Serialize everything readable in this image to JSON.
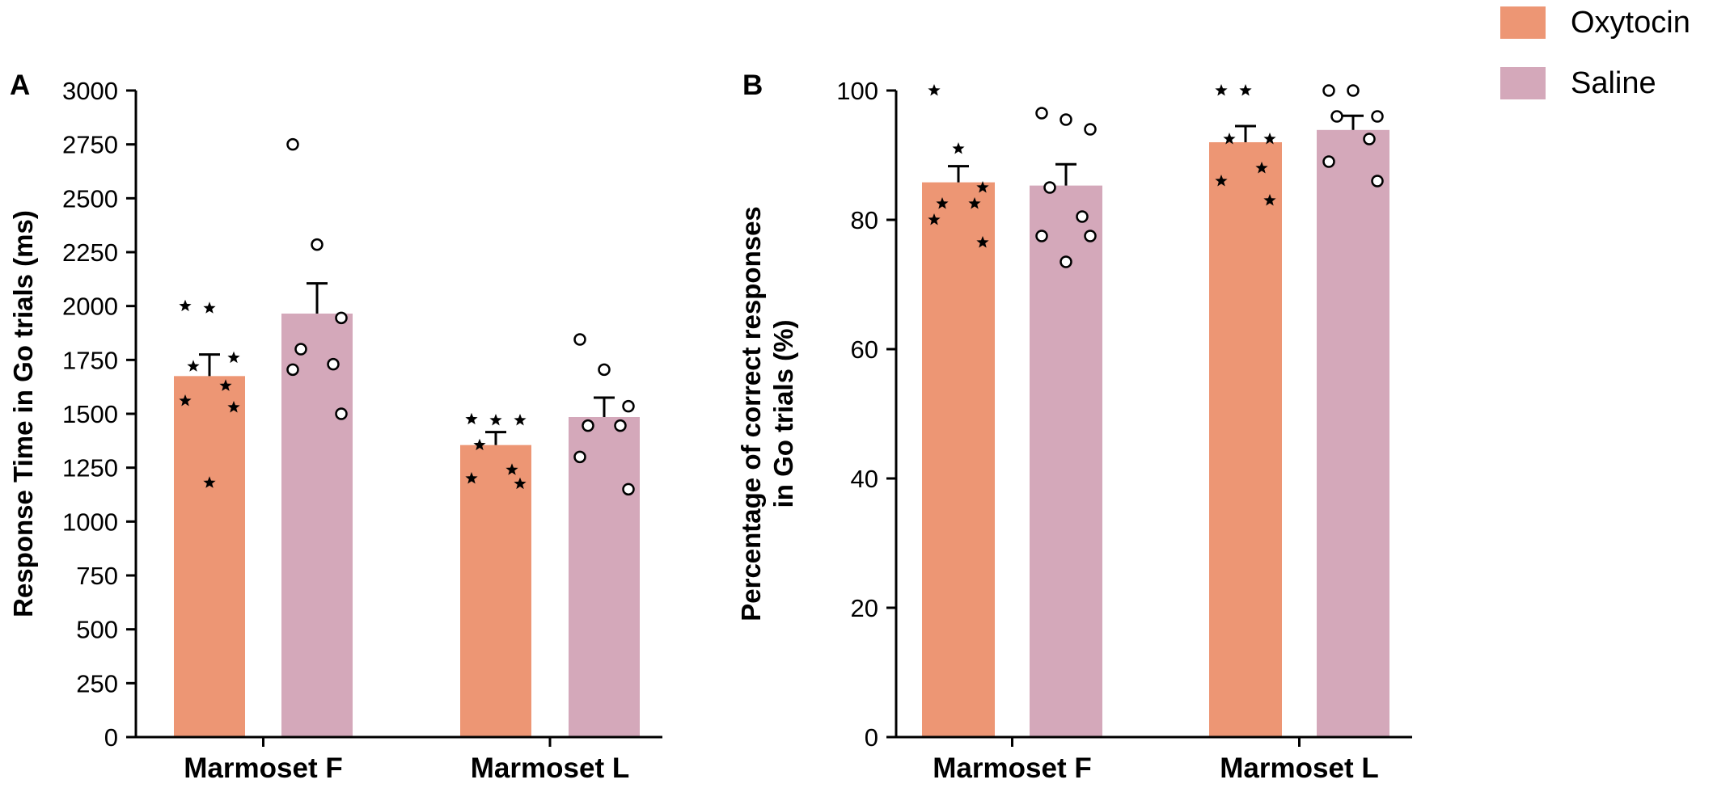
{
  "colors": {
    "oxytocin": "#ed9674",
    "saline": "#d4a8ba",
    "axis": "#000000"
  },
  "legend": [
    {
      "label": "Oxytocin",
      "color": "#ed9674",
      "marker": "star"
    },
    {
      "label": "Saline",
      "color": "#d4a8ba",
      "marker": "circle"
    }
  ],
  "chart_data": [
    {
      "panel": "A",
      "type": "bar",
      "ylabel": "Response Time in Go trials (ms)",
      "ylim": [
        0,
        3000
      ],
      "yticks": [
        0,
        250,
        500,
        750,
        1000,
        1250,
        1500,
        1750,
        2000,
        2250,
        2500,
        2750,
        3000
      ],
      "categories": [
        "Marmoset F",
        "Marmoset L"
      ],
      "series": [
        {
          "name": "Oxytocin",
          "marker": "star",
          "values": [
            1675,
            1355
          ],
          "sem": [
            100,
            60
          ],
          "points": [
            [
              2000,
              1990,
              1760,
              1720,
              1630,
              1560,
              1530,
              1180
            ],
            [
              1475,
              1470,
              1470,
              1355,
              1240,
              1200,
              1175
            ]
          ]
        },
        {
          "name": "Saline",
          "marker": "circle",
          "values": [
            1965,
            1485
          ],
          "sem": [
            140,
            90
          ],
          "points": [
            [
              2750,
              2285,
              1945,
              1800,
              1730,
              1705,
              1500
            ],
            [
              1845,
              1705,
              1535,
              1445,
              1445,
              1300,
              1150
            ]
          ]
        }
      ]
    },
    {
      "panel": "B",
      "type": "bar",
      "ylabel": "Percentage of correct responses in Go trials (%)",
      "ylim": [
        0,
        100
      ],
      "yticks": [
        0,
        20,
        40,
        60,
        80,
        100
      ],
      "categories": [
        "Marmoset F",
        "Marmoset L"
      ],
      "series": [
        {
          "name": "Oxytocin",
          "marker": "star",
          "values": [
            85.8,
            92.0
          ],
          "sem": [
            2.5,
            2.5
          ],
          "points": [
            [
              100,
              91,
              85,
              82.5,
              82.5,
              80,
              76.5
            ],
            [
              100,
              100,
              92.5,
              92.5,
              88,
              86,
              83
            ]
          ]
        },
        {
          "name": "Saline",
          "marker": "circle",
          "values": [
            85.3,
            93.9
          ],
          "sem": [
            3.3,
            2.2
          ],
          "points": [
            [
              96.5,
              95.5,
              94,
              85,
              80.5,
              77.5,
              77.5,
              73.5
            ],
            [
              100,
              100,
              96,
              96,
              92.5,
              89,
              86
            ]
          ]
        }
      ]
    }
  ]
}
